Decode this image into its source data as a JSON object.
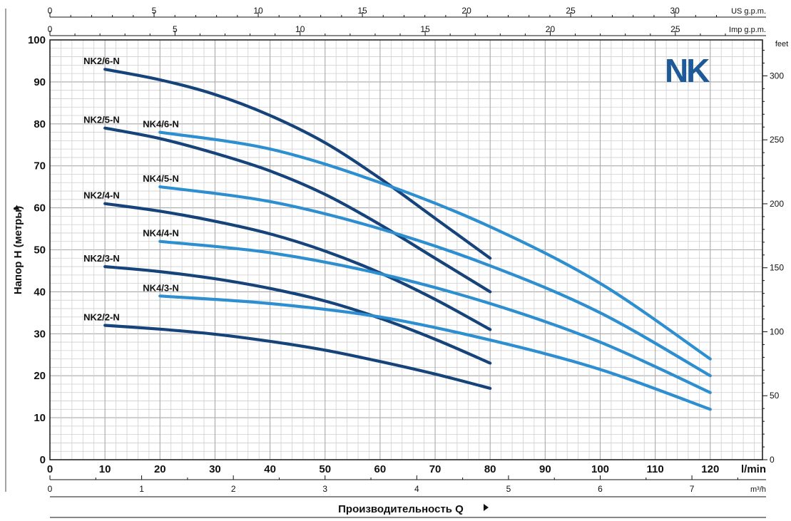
{
  "logo": "NK",
  "chart_data": {
    "type": "line",
    "ylabel": "Напор H (метры)",
    "xlabel": "Производительность Q",
    "x_unit": "l/min",
    "x_range": [
      0,
      120
    ],
    "x_ticks": [
      0,
      10,
      20,
      30,
      40,
      50,
      60,
      70,
      80,
      90,
      100,
      110,
      120
    ],
    "y_range": [
      0,
      100
    ],
    "y_ticks": [
      0,
      10,
      20,
      30,
      40,
      50,
      60,
      70,
      80,
      90,
      100
    ],
    "grid": true,
    "secondary_axes": {
      "us_gpm": {
        "unit": "US g.p.m.",
        "ticks": [
          0,
          5,
          10,
          15,
          20,
          25,
          30
        ]
      },
      "imp_gpm": {
        "unit": "Imp g.p.m.",
        "ticks": [
          0,
          5,
          10,
          15,
          20,
          25
        ]
      },
      "m3h": {
        "unit": "m³/h",
        "ticks": [
          0,
          1,
          2,
          3,
          4,
          5,
          6,
          7
        ]
      },
      "feet": {
        "unit": "feet",
        "ticks": [
          0,
          50,
          100,
          150,
          200,
          250,
          300
        ]
      }
    },
    "colors": {
      "NK2": "#16437a",
      "NK4": "#2d8ed0"
    },
    "series": [
      {
        "name": "NK2/6-N",
        "group": "NK2",
        "x": [
          10,
          20,
          30,
          40,
          50,
          60,
          70,
          80
        ],
        "y": [
          93,
          90.5,
          87,
          82,
          75.5,
          67,
          57.5,
          48
        ]
      },
      {
        "name": "NK2/5-N",
        "group": "NK2",
        "x": [
          10,
          20,
          30,
          40,
          50,
          60,
          70,
          80
        ],
        "y": [
          79,
          76.5,
          73,
          68.8,
          63.2,
          56,
          48,
          40
        ]
      },
      {
        "name": "NK2/4-N",
        "group": "NK2",
        "x": [
          10,
          20,
          30,
          40,
          50,
          60,
          70,
          80
        ],
        "y": [
          61,
          59.2,
          56.8,
          53.8,
          49.7,
          44.5,
          38.2,
          31
        ]
      },
      {
        "name": "NK2/3-N",
        "group": "NK2",
        "x": [
          10,
          20,
          30,
          40,
          50,
          60,
          70,
          80
        ],
        "y": [
          46,
          44.8,
          43.1,
          40.8,
          37.8,
          33.7,
          28.7,
          23
        ]
      },
      {
        "name": "NK2/2-N",
        "group": "NK2",
        "x": [
          10,
          20,
          30,
          40,
          50,
          60,
          70,
          80
        ],
        "y": [
          32,
          31.1,
          29.9,
          28.2,
          26.1,
          23.4,
          20.4,
          17
        ]
      },
      {
        "name": "NK4/6-N",
        "group": "NK4",
        "x": [
          20,
          40,
          60,
          80,
          100,
          120
        ],
        "y": [
          78,
          74,
          66,
          55.5,
          42,
          24
        ]
      },
      {
        "name": "NK4/5-N",
        "group": "NK4",
        "x": [
          20,
          40,
          60,
          80,
          100,
          120
        ],
        "y": [
          65,
          61.5,
          55,
          46.2,
          35,
          20
        ]
      },
      {
        "name": "NK4/4-N",
        "group": "NK4",
        "x": [
          20,
          40,
          60,
          80,
          100,
          120
        ],
        "y": [
          52,
          49.3,
          44.3,
          37.2,
          28,
          16
        ]
      },
      {
        "name": "NK4/3-N",
        "group": "NK4",
        "x": [
          20,
          40,
          60,
          80,
          100,
          120
        ],
        "y": [
          39,
          37.2,
          34,
          28.5,
          21.5,
          12
        ]
      }
    ]
  }
}
